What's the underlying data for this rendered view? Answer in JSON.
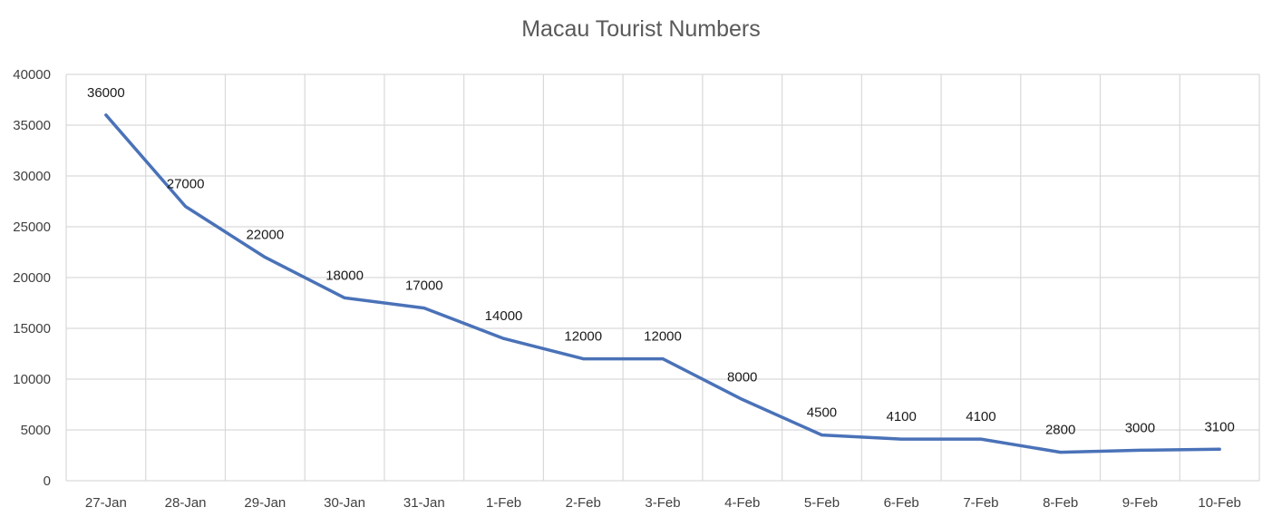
{
  "chart_data": {
    "type": "line",
    "title": "Macau Tourist Numbers",
    "xlabel": "",
    "ylabel": "",
    "categories": [
      "27-Jan",
      "28-Jan",
      "29-Jan",
      "30-Jan",
      "31-Jan",
      "1-Feb",
      "2-Feb",
      "3-Feb",
      "4-Feb",
      "5-Feb",
      "6-Feb",
      "7-Feb",
      "8-Feb",
      "9-Feb",
      "10-Feb"
    ],
    "series": [
      {
        "values": [
          36000,
          27000,
          22000,
          18000,
          17000,
          14000,
          12000,
          12000,
          8000,
          4500,
          4100,
          4100,
          2800,
          3000,
          3100
        ]
      }
    ],
    "ylim": [
      0,
      40000
    ],
    "yticks": [
      0,
      5000,
      10000,
      15000,
      20000,
      25000,
      30000,
      35000,
      40000
    ],
    "grid": true,
    "legend": "none",
    "data_labels": true,
    "colors": {
      "line": "#4a72b8",
      "grid": "#d9d9d9",
      "title": "#595959"
    }
  }
}
